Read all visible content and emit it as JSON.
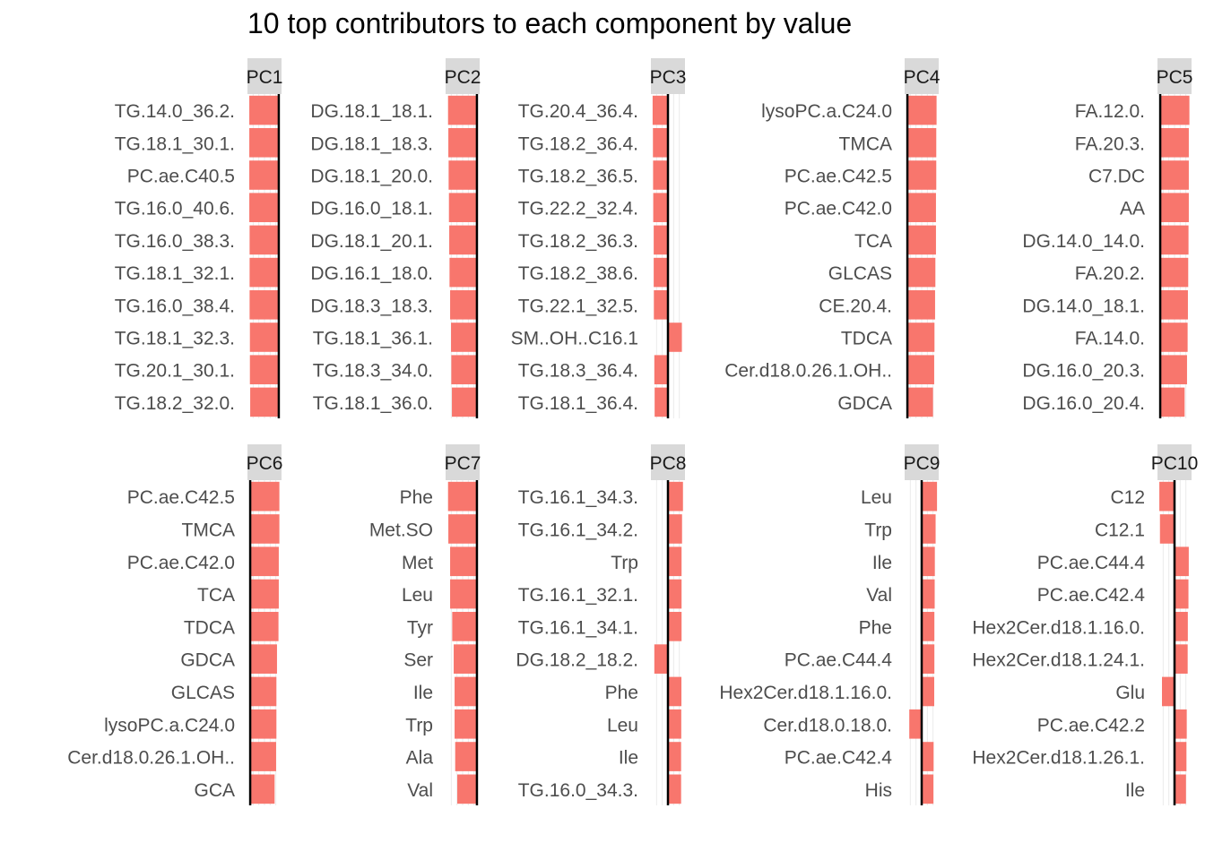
{
  "title": "10 top contributors to each component by value",
  "colors": {
    "bar": "#F8766D",
    "strip": "#D9D9D9",
    "zero_line": "#000000",
    "grid": "#EBEBEB",
    "label": "#4D4D4D"
  },
  "chart_data": [
    {
      "type": "bar",
      "orientation": "horizontal",
      "facet": "PC1",
      "categories": [
        "TG.14.0_36.2.",
        "TG.18.1_30.1.",
        "PC.ae.C40.5",
        "TG.16.0_40.6.",
        "TG.16.0_38.3.",
        "TG.18.1_32.1.",
        "TG.16.0_38.4.",
        "TG.18.1_32.3.",
        "TG.20.1_30.1.",
        "TG.18.2_32.0."
      ],
      "values": [
        -0.99,
        -0.99,
        -0.99,
        -0.99,
        -0.98,
        -0.98,
        -0.98,
        -0.97,
        -0.97,
        -0.96
      ]
    },
    {
      "type": "bar",
      "orientation": "horizontal",
      "facet": "PC2",
      "categories": [
        "DG.18.1_18.1.",
        "DG.18.1_18.3.",
        "DG.18.1_20.0.",
        "DG.16.0_18.1.",
        "DG.18.1_20.1.",
        "DG.16.1_18.0.",
        "DG.18.3_18.3.",
        "TG.18.1_36.1.",
        "TG.18.3_34.0.",
        "TG.18.1_36.0."
      ],
      "values": [
        -0.97,
        -0.96,
        -0.95,
        -0.94,
        -0.93,
        -0.92,
        -0.9,
        -0.87,
        -0.86,
        -0.84
      ]
    },
    {
      "type": "bar",
      "orientation": "horizontal",
      "facet": "PC3",
      "categories": [
        "TG.20.4_36.4.",
        "TG.18.2_36.4.",
        "TG.18.2_36.5.",
        "TG.22.2_32.4.",
        "TG.18.2_36.3.",
        "TG.18.2_38.6.",
        "TG.22.1_32.5.",
        "SM..OH..C16.1",
        "TG.18.3_36.4.",
        "TG.18.1_36.4."
      ],
      "values": [
        -0.99,
        -0.97,
        -0.96,
        -0.95,
        -0.92,
        -0.92,
        -0.91,
        0.9,
        -0.88,
        -0.86
      ]
    },
    {
      "type": "bar",
      "orientation": "horizontal",
      "facet": "PC4",
      "categories": [
        "lysoPC.a.C24.0",
        "TMCA",
        "PC.ae.C42.5",
        "PC.ae.C42.0",
        "TCA",
        "GLCAS",
        "CE.20.4.",
        "TDCA",
        "Cer.d18.0.26.1.OH..",
        "GDCA"
      ],
      "values": [
        0.98,
        0.97,
        0.97,
        0.96,
        0.96,
        0.94,
        0.93,
        0.91,
        0.9,
        0.86
      ]
    },
    {
      "type": "bar",
      "orientation": "horizontal",
      "facet": "PC5",
      "categories": [
        "FA.12.0.",
        "FA.20.3.",
        "C7.DC",
        "AA",
        "DG.14.0_14.0.",
        "FA.20.2.",
        "DG.14.0_18.1.",
        "FA.14.0.",
        "DG.16.0_20.3.",
        "DG.16.0_20.4."
      ],
      "values": [
        0.98,
        0.96,
        0.96,
        0.96,
        0.95,
        0.94,
        0.93,
        0.92,
        0.9,
        0.82
      ]
    },
    {
      "type": "bar",
      "orientation": "horizontal",
      "facet": "PC6",
      "categories": [
        "PC.ae.C42.5",
        "TMCA",
        "PC.ae.C42.0",
        "TCA",
        "TDCA",
        "GDCA",
        "GLCAS",
        "lysoPC.a.C24.0",
        "Cer.d18.0.26.1.OH..",
        "GCA"
      ],
      "values": [
        0.98,
        0.98,
        0.96,
        0.96,
        0.95,
        0.9,
        0.88,
        0.88,
        0.87,
        0.82
      ]
    },
    {
      "type": "bar",
      "orientation": "horizontal",
      "facet": "PC7",
      "categories": [
        "Phe",
        "Met.SO",
        "Met",
        "Leu",
        "Tyr",
        "Ser",
        "Ile",
        "Trp",
        "Ala",
        "Val"
      ],
      "values": [
        -0.97,
        -0.96,
        -0.9,
        -0.9,
        -0.83,
        -0.78,
        -0.75,
        -0.75,
        -0.73,
        -0.66
      ]
    },
    {
      "type": "bar",
      "orientation": "horizontal",
      "facet": "PC8",
      "categories": [
        "TG.16.1_34.3.",
        "TG.16.1_34.2.",
        "Trp",
        "TG.16.1_32.1.",
        "TG.16.1_34.1.",
        "DG.18.2_18.2.",
        "Phe",
        "Leu",
        "Ile",
        "TG.16.0_34.3."
      ],
      "values": [
        0.97,
        0.91,
        0.88,
        0.88,
        0.88,
        -0.88,
        0.87,
        0.86,
        0.85,
        0.85
      ]
    },
    {
      "type": "bar",
      "orientation": "horizontal",
      "facet": "PC9",
      "categories": [
        "Leu",
        "Trp",
        "Ile",
        "Val",
        "Phe",
        "PC.ae.C44.4",
        "Hex2Cer.d18.1.16.0.",
        "Cer.d18.0.18.0.",
        "PC.ae.C42.4",
        "His"
      ],
      "values": [
        0.99,
        0.9,
        0.85,
        0.84,
        0.82,
        0.82,
        0.81,
        -0.8,
        0.77,
        0.76
      ]
    },
    {
      "type": "bar",
      "orientation": "horizontal",
      "facet": "PC10",
      "categories": [
        "C12",
        "C12.1",
        "PC.ae.C44.4",
        "PC.ae.C42.4",
        "Hex2Cer.d18.1.16.0.",
        "Hex2Cer.d18.1.24.1.",
        "Glu",
        "PC.ae.C42.2",
        "Hex2Cer.d18.1.26.1.",
        "Ile"
      ],
      "values": [
        -0.98,
        -0.94,
        0.92,
        0.9,
        0.86,
        0.85,
        -0.81,
        0.79,
        0.77,
        0.74
      ]
    }
  ]
}
